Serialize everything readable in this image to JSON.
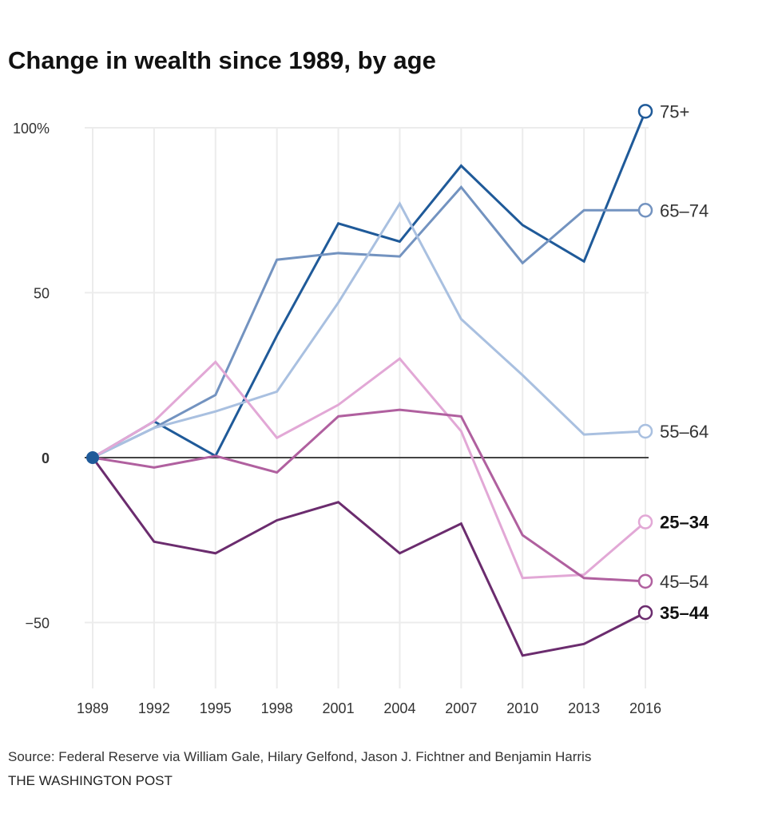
{
  "chart_data": {
    "type": "line",
    "title": "Change in wealth since 1989, by age",
    "xlabel": "",
    "ylabel": "",
    "x": [
      1989,
      1992,
      1995,
      1998,
      2001,
      2004,
      2007,
      2010,
      2013,
      2016
    ],
    "x_tick_labels": [
      "1989",
      "1992",
      "1995",
      "1998",
      "2001",
      "2004",
      "2007",
      "2010",
      "2013",
      "2016"
    ],
    "y_ticks": [
      100,
      50,
      0,
      -50
    ],
    "y_tick_labels": [
      "100%",
      "50",
      "0",
      "−50"
    ],
    "ylim": [
      -65,
      108
    ],
    "grid": true,
    "legend": "direct labels at line ends (right)",
    "series": [
      {
        "name": "75+",
        "color": "#1f5a99",
        "bold": false,
        "values": [
          0,
          11,
          0.5,
          37,
          71,
          65.5,
          88.5,
          70.5,
          59.5,
          105
        ]
      },
      {
        "name": "65–74",
        "color": "#7393c0",
        "bold": false,
        "values": [
          0,
          9,
          19,
          60,
          62,
          61,
          82,
          59,
          75,
          75
        ]
      },
      {
        "name": "55–64",
        "color": "#a9c0e0",
        "bold": false,
        "values": [
          0,
          9,
          14,
          20,
          47,
          77,
          42,
          25,
          7,
          8
        ]
      },
      {
        "name": "25–34",
        "color": "#e2a8d6",
        "bold": true,
        "values": [
          0,
          11,
          29,
          6,
          16,
          30,
          8,
          -36.5,
          -35.5,
          -19.5
        ]
      },
      {
        "name": "45–54",
        "color": "#b0609f",
        "bold": false,
        "values": [
          0,
          -3,
          0.5,
          -4.5,
          12.5,
          14.5,
          12.5,
          -23.5,
          -36.5,
          -37.5
        ]
      },
      {
        "name": "35–44",
        "color": "#6b2c6e",
        "bold": true,
        "values": [
          0,
          -25.5,
          -29,
          -19,
          -13.5,
          -29,
          -20,
          -60,
          -56.5,
          -47
        ]
      }
    ]
  },
  "source": "Source: Federal Reserve via William Gale, Hilary Gelfond, Jason J. Fichtner and Benjamin Harris",
  "credit": "THE WASHINGTON POST"
}
